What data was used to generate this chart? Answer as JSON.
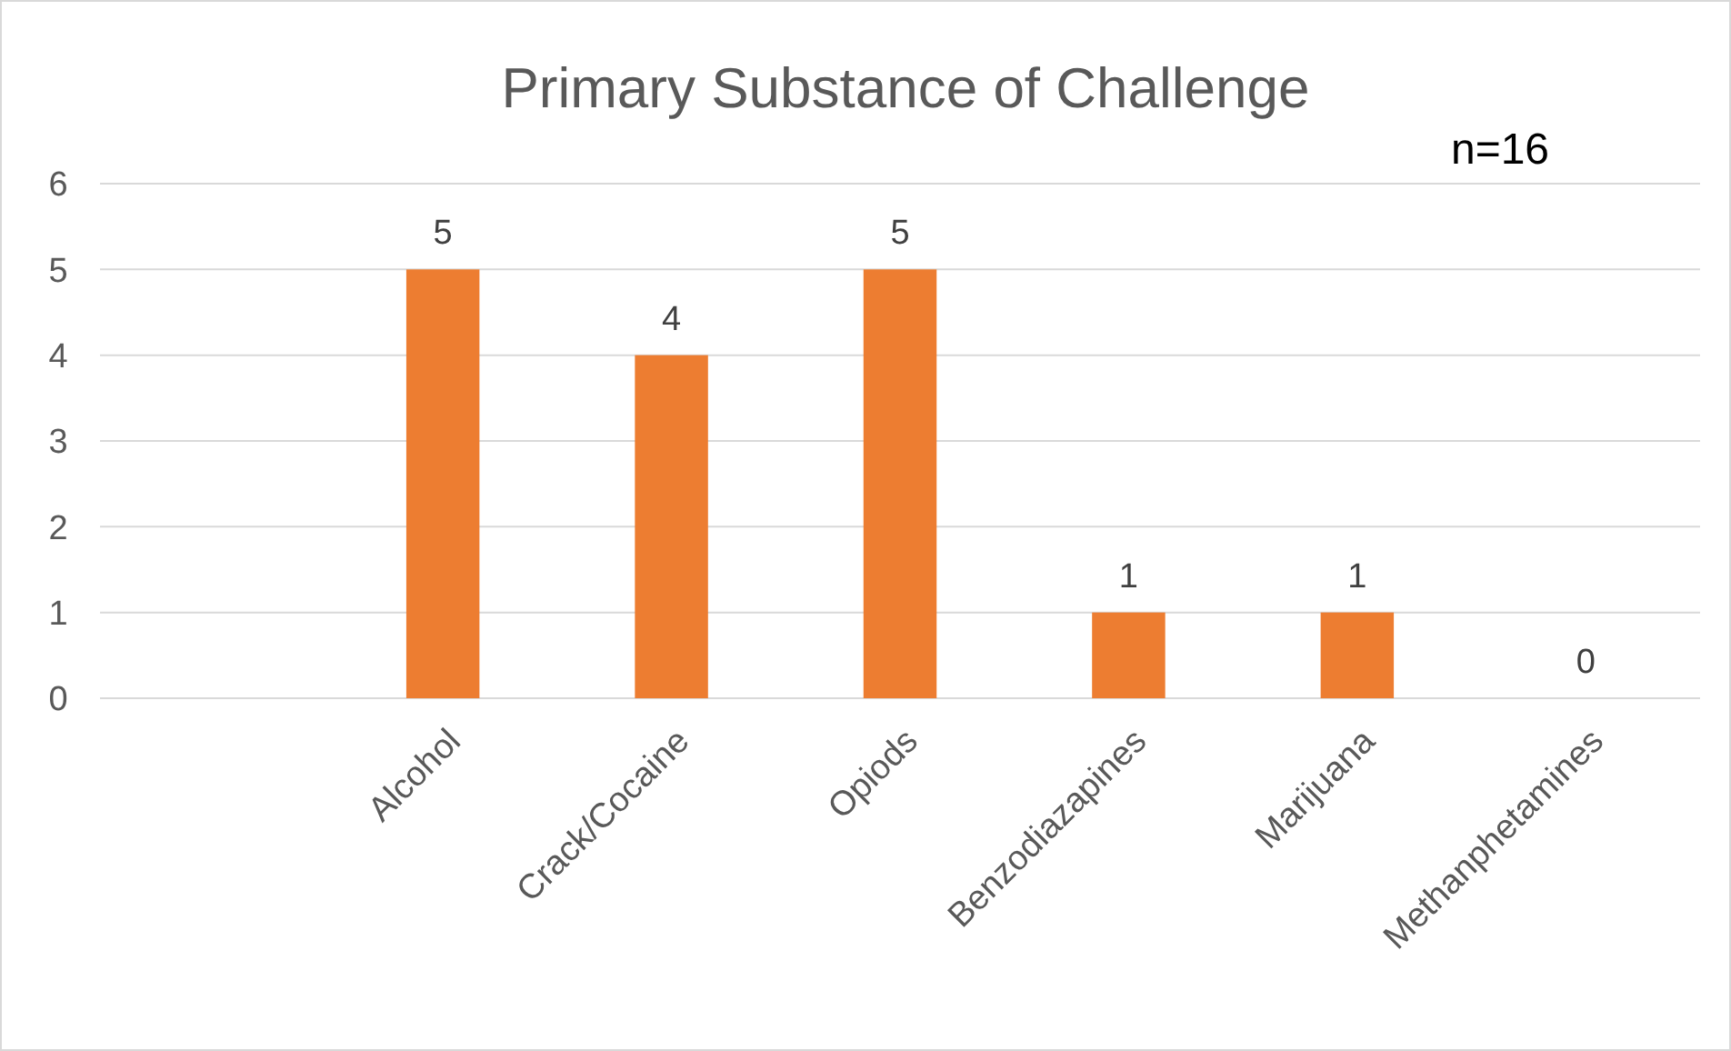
{
  "chart_data": {
    "type": "bar",
    "title": "Primary Substance of Challenge",
    "categories": [
      null,
      "Alcohol",
      "Crack/Cocaine",
      "Opiods",
      "Benzodiazapines",
      "Marijuana",
      "Methanphetamines"
    ],
    "values": [
      null,
      5,
      4,
      5,
      1,
      1,
      0
    ],
    "color": "#ed7d31",
    "ylim": [
      0,
      6
    ],
    "yticks": [
      0,
      1,
      2,
      3,
      4,
      5,
      6
    ],
    "grid": "y",
    "data_labels": true,
    "annotations": [
      "n=16"
    ]
  }
}
